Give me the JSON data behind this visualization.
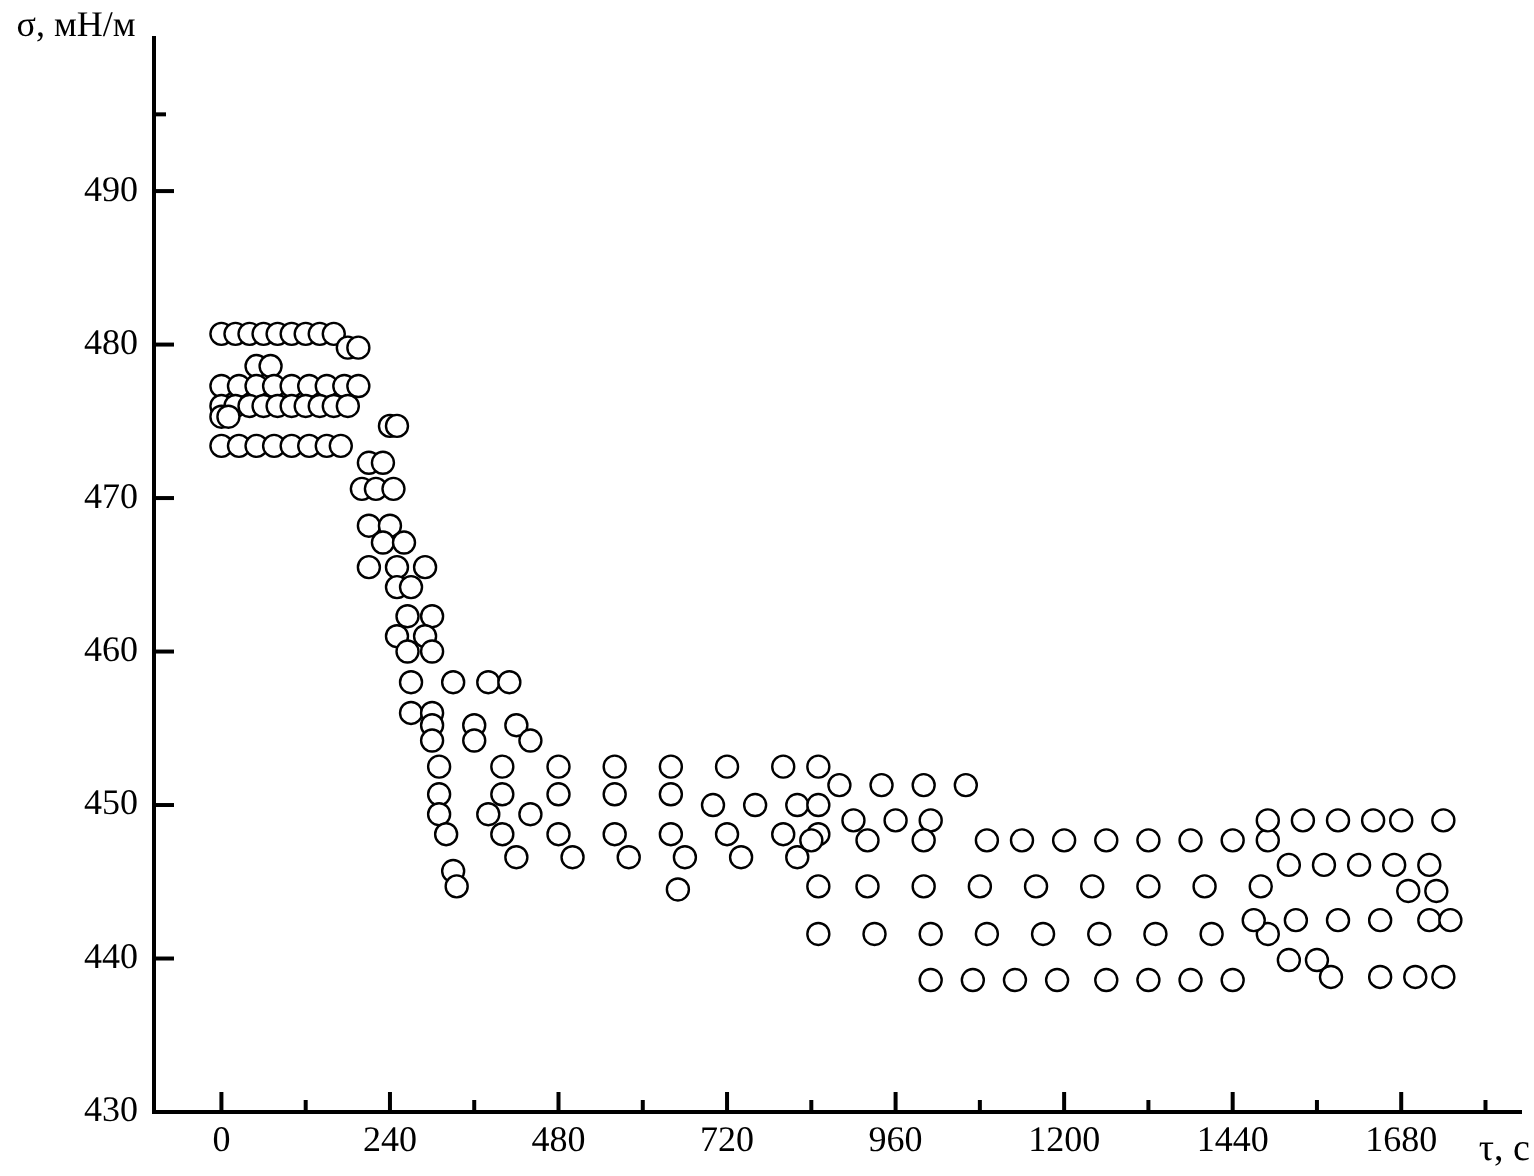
{
  "chart_data": {
    "type": "scatter",
    "xlabel": "τ, с",
    "ylabel": "σ, мН/м",
    "xlim": [
      -96,
      1850
    ],
    "xticks": [
      0,
      {
        "value": 120,
        "label": null
      },
      240,
      {
        "value": 360,
        "label": null
      },
      480,
      {
        "value": 600,
        "label": null
      },
      720,
      {
        "value": 840,
        "label": null
      },
      960,
      {
        "value": 1080,
        "label": null
      },
      1200,
      {
        "value": 1320,
        "label": null
      },
      1440,
      {
        "value": 1560,
        "label": null
      },
      1680,
      {
        "value": 1800,
        "label": null
      }
    ],
    "ylim": [
      430,
      500
    ],
    "yticks": [
      430,
      440,
      450,
      460,
      470,
      480,
      490,
      {
        "value": 495,
        "label": null
      }
    ],
    "grid": false,
    "legend": false,
    "marker": "circle",
    "series": [
      {
        "color": "#000000",
        "x": [
          0,
          20,
          40,
          60,
          80,
          100,
          120,
          140,
          160,
          180,
          195,
          50,
          70,
          0,
          25,
          50,
          75,
          100,
          125,
          150,
          175,
          195,
          0,
          20,
          40,
          60,
          80,
          100,
          120,
          140,
          160,
          180,
          0,
          10,
          0,
          25,
          50,
          75,
          100,
          125,
          150,
          170,
          240,
          250,
          210,
          230,
          200,
          220,
          245,
          210,
          240,
          230,
          260,
          210,
          250,
          290,
          250,
          270,
          265,
          300,
          250,
          290,
          265,
          300,
          270,
          330,
          380,
          410,
          270,
          300,
          300,
          360,
          420,
          300,
          360,
          440,
          310,
          400,
          480,
          560,
          640,
          720,
          800,
          850,
          310,
          400,
          480,
          560,
          640,
          700,
          760,
          820,
          850,
          310,
          380,
          440,
          320,
          400,
          480,
          560,
          640,
          720,
          800,
          850,
          420,
          500,
          580,
          660,
          740,
          820,
          330,
          335,
          650,
          880,
          940,
          1000,
          1060,
          900,
          960,
          1010,
          840,
          920,
          1000,
          1090,
          1140,
          1200,
          1260,
          1320,
          1380,
          1440,
          1490,
          850,
          920,
          1000,
          1080,
          1160,
          1240,
          1320,
          1400,
          1480,
          850,
          930,
          1010,
          1090,
          1170,
          1250,
          1330,
          1410,
          1490,
          1010,
          1070,
          1130,
          1190,
          1260,
          1320,
          1380,
          1440,
          1490,
          1540,
          1590,
          1640,
          1680,
          1740,
          1520,
          1570,
          1620,
          1670,
          1720,
          1470,
          1530,
          1590,
          1650,
          1720,
          1750,
          1520,
          1560,
          1580,
          1650,
          1700,
          1740,
          1690,
          1730
        ],
        "values": [
          480.7,
          480.7,
          480.7,
          480.7,
          480.7,
          480.7,
          480.7,
          480.7,
          480.7,
          479.8,
          479.8,
          478.6,
          478.6,
          477.3,
          477.3,
          477.3,
          477.3,
          477.3,
          477.3,
          477.3,
          477.3,
          477.3,
          476,
          476,
          476,
          476,
          476,
          476,
          476,
          476,
          476,
          476,
          475.3,
          475.3,
          473.4,
          473.4,
          473.4,
          473.4,
          473.4,
          473.4,
          473.4,
          473.4,
          474.7,
          474.7,
          472.3,
          472.3,
          470.6,
          470.6,
          470.6,
          468.2,
          468.2,
          467.1,
          467.1,
          465.5,
          465.5,
          465.5,
          464.2,
          464.2,
          462.3,
          462.3,
          461,
          461,
          460,
          460,
          458,
          458,
          458,
          458,
          456,
          456,
          455.2,
          455.2,
          455.2,
          454.2,
          454.2,
          454.2,
          452.5,
          452.5,
          452.5,
          452.5,
          452.5,
          452.5,
          452.5,
          452.5,
          450.7,
          450.7,
          450.7,
          450.7,
          450.7,
          450,
          450,
          450,
          450,
          449.4,
          449.4,
          449.4,
          448.1,
          448.1,
          448.1,
          448.1,
          448.1,
          448.1,
          448.1,
          448.1,
          446.6,
          446.6,
          446.6,
          446.6,
          446.6,
          446.6,
          445.7,
          444.7,
          444.5,
          451.3,
          451.3,
          451.3,
          451.3,
          449,
          449,
          449,
          447.7,
          447.7,
          447.7,
          447.7,
          447.7,
          447.7,
          447.7,
          447.7,
          447.7,
          447.7,
          447.7,
          444.7,
          444.7,
          444.7,
          444.7,
          444.7,
          444.7,
          444.7,
          444.7,
          444.7,
          441.6,
          441.6,
          441.6,
          441.6,
          441.6,
          441.6,
          441.6,
          441.6,
          441.6,
          438.6,
          438.6,
          438.6,
          438.6,
          438.6,
          438.6,
          438.6,
          438.6,
          449,
          449,
          449,
          449,
          449,
          449,
          446.1,
          446.1,
          446.1,
          446.1,
          446.1,
          442.5,
          442.5,
          442.5,
          442.5,
          442.5,
          442.5,
          439.9,
          439.9,
          438.8,
          438.8,
          438.8,
          438.8,
          444.4,
          444.4
        ]
      }
    ]
  }
}
